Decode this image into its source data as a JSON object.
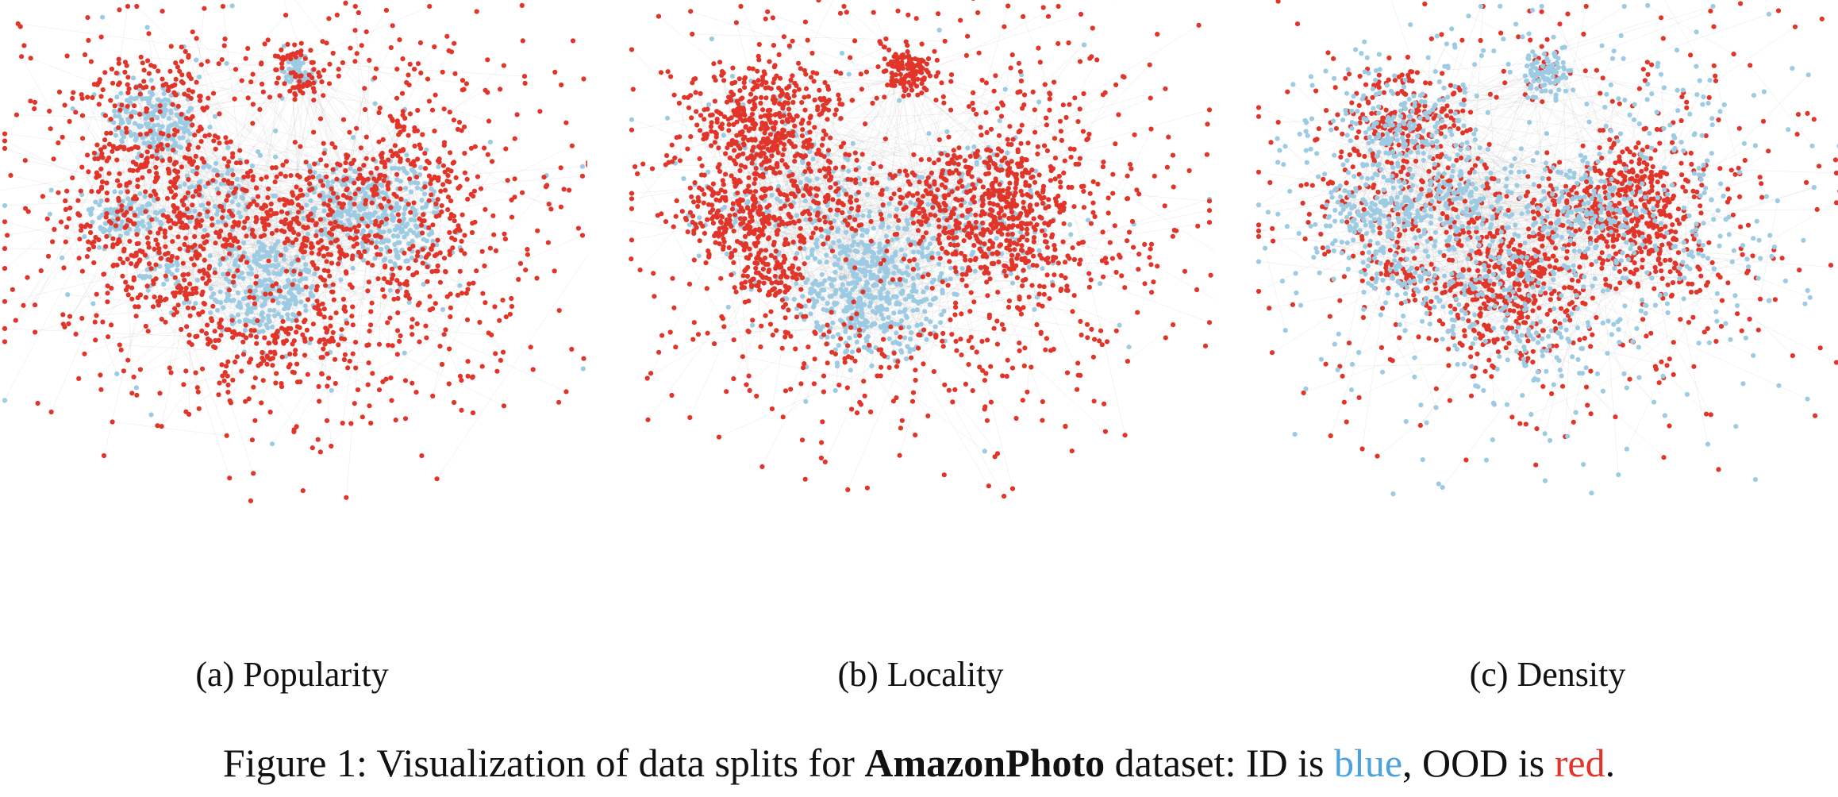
{
  "colors": {
    "id": "#9ccbe3",
    "ood": "#e2352a",
    "id_text": "#4aa3df",
    "ood_text": "#e2352a",
    "edge": "#b3b3b3"
  },
  "panels": [
    {
      "key": "a",
      "caption": "(a) Popularity"
    },
    {
      "key": "b",
      "caption": "(b) Locality"
    },
    {
      "key": "c",
      "caption": "(c) Density"
    }
  ],
  "caption": {
    "prefix": "Figure 1: Visualization of data splits for ",
    "dataset": "AmazonPhoto",
    "middle": " dataset: ID is ",
    "id_word": "blue",
    "sep": ", OOD is ",
    "ood_word": "red",
    "end": "."
  }
}
